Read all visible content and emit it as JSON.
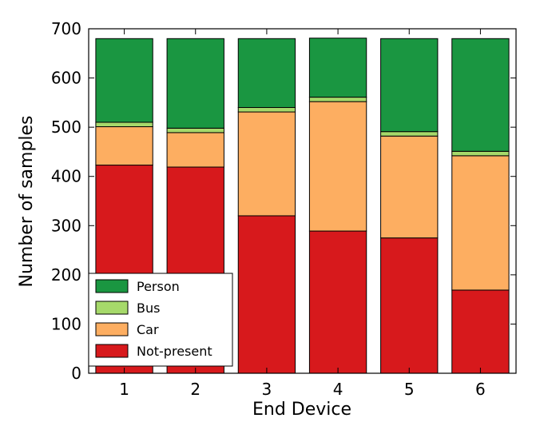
{
  "chart_data": {
    "type": "bar",
    "stacked": true,
    "categories": [
      "1",
      "2",
      "3",
      "4",
      "5",
      "6"
    ],
    "series": [
      {
        "name": "Not-present",
        "color": "#d7191c",
        "values": [
          423,
          419,
          320,
          289,
          275,
          169
        ]
      },
      {
        "name": "Car",
        "color": "#fdae61",
        "values": [
          78,
          70,
          211,
          263,
          207,
          273
        ]
      },
      {
        "name": "Bus",
        "color": "#a6d96a",
        "values": [
          9,
          9,
          9,
          9,
          9,
          9
        ]
      },
      {
        "name": "Person",
        "color": "#1a9641",
        "values": [
          170,
          182,
          140,
          120,
          189,
          229
        ]
      }
    ],
    "xlabel": "End Device",
    "ylabel": "Number of samples",
    "ylim": [
      0,
      700
    ],
    "yticks": [
      "0",
      "100",
      "200",
      "300",
      "400",
      "500",
      "600",
      "700"
    ],
    "legend_position": "lower-left",
    "legend_order": [
      "Person",
      "Bus",
      "Car",
      "Not-present"
    ],
    "grid": false
  }
}
